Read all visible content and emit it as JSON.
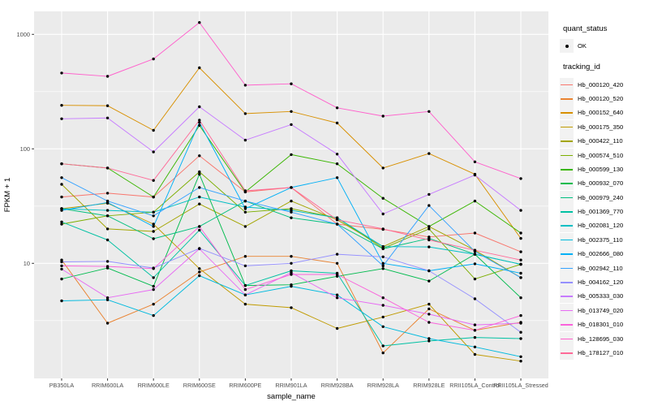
{
  "figure": {
    "background": "#FFFFFF",
    "panel_bg": "#EBEBEB",
    "grid_color": "#FFFFFF",
    "axis_text_color": "#4D4D4D",
    "title_color": "#000000",
    "point_color": "#000000",
    "legend_key_bg": "#F2F2F2"
  },
  "legend": {
    "quant_title": "quant_status",
    "quant_items": [
      {
        "label": "OK",
        "symbol": "point"
      }
    ],
    "tracking_title": "tracking_id"
  },
  "chart_data": {
    "type": "line",
    "title": "",
    "xlabel": "sample_name",
    "ylabel": "FPKM + 1",
    "yscale": "log10",
    "ylim": [
      1,
      1585
    ],
    "y_ticks": [
      10,
      100,
      1000
    ],
    "y_minor_ticks": [
      3.162,
      31.62,
      316.2
    ],
    "grid": true,
    "legend_position": "right",
    "point_marker": "black dot on every value",
    "categories": [
      "PB350LA",
      "RRIM600LA",
      "RRIM600LE",
      "RRIM600SE",
      "RRIM600PE",
      "RRIM901LA",
      "RRIM928BA",
      "RRIM928LA",
      "RRIM928LE",
      "RRII105LA_Control",
      "RRII105LA_Stressed"
    ],
    "series": [
      {
        "name": "Hb_000120_420",
        "color": "#F8766D",
        "values": [
          38,
          41,
          38,
          87,
          42,
          46,
          22,
          19.8,
          17,
          18.4,
          12.6
        ]
      },
      {
        "name": "Hb_000120_520",
        "color": "#EA8331",
        "values": [
          10.7,
          3.0,
          4.4,
          8.4,
          11.5,
          11.5,
          10.0,
          1.65,
          4.0,
          2.6,
          3.05
        ]
      },
      {
        "name": "Hb_000152_640",
        "color": "#D89000",
        "values": [
          240,
          238,
          145,
          510,
          203,
          212,
          168,
          68,
          91,
          60,
          16.5
        ]
      },
      {
        "name": "Hb_000175_350",
        "color": "#C09B00",
        "values": [
          30,
          33.5,
          22,
          9.0,
          4.4,
          4.1,
          2.7,
          3.4,
          4.4,
          1.6,
          1.4
        ]
      },
      {
        "name": "Hb_000422_110",
        "color": "#A3A500",
        "values": [
          49,
          20,
          19,
          33,
          21,
          35,
          24,
          14,
          21,
          13,
          7.5
        ]
      },
      {
        "name": "Hb_000574_510",
        "color": "#7CAE00",
        "values": [
          22,
          26,
          28,
          63,
          28,
          30,
          25,
          13.5,
          20,
          7.3,
          9.8
        ]
      },
      {
        "name": "Hb_000599_130",
        "color": "#39B600",
        "values": [
          74,
          68,
          38,
          160,
          42,
          89,
          74,
          37,
          21,
          35,
          18.4
        ]
      },
      {
        "name": "Hb_000932_070",
        "color": "#00BB4E",
        "values": [
          7.3,
          9.1,
          6.3,
          60,
          6.4,
          6.5,
          7.7,
          9.0,
          7.0,
          12,
          5.0
        ]
      },
      {
        "name": "Hb_000979_240",
        "color": "#00BF7D",
        "values": [
          30,
          26,
          16.4,
          21,
          35,
          25,
          22,
          13.4,
          16.5,
          12,
          9.8
        ]
      },
      {
        "name": "Hb_001369_770",
        "color": "#00C1A3",
        "values": [
          23,
          16,
          7.5,
          19.5,
          6.4,
          8.6,
          8.2,
          1.9,
          2.1,
          2.25,
          2.2
        ]
      },
      {
        "name": "Hb_002081_120",
        "color": "#00BFC4",
        "values": [
          30,
          29,
          28,
          38,
          31,
          29,
          25,
          14,
          13.9,
          12,
          9.8
        ]
      },
      {
        "name": "Hb_002375_110",
        "color": "#00BADE",
        "values": [
          4.7,
          4.8,
          3.5,
          7.8,
          5.3,
          6.3,
          5.3,
          2.8,
          2.2,
          1.86,
          1.53
        ]
      },
      {
        "name": "Hb_002666_080",
        "color": "#00B0F6",
        "values": [
          29,
          34,
          21,
          170,
          30,
          46,
          56,
          10,
          8.6,
          9.9,
          8.2
        ]
      },
      {
        "name": "Hb_002942_110",
        "color": "#35A2FF",
        "values": [
          56,
          35,
          26,
          46,
          35,
          28,
          22,
          9.5,
          32,
          12.7,
          7.5
        ]
      },
      {
        "name": "Hb_004162_120",
        "color": "#9590FF",
        "values": [
          10.3,
          10.4,
          9.1,
          13.5,
          9.5,
          10,
          12,
          11.4,
          8.6,
          4.9,
          2.5
        ]
      },
      {
        "name": "Hb_005333_030",
        "color": "#C77CFF",
        "values": [
          183,
          186,
          94,
          233,
          119,
          163,
          90,
          27,
          40,
          59,
          29
        ]
      },
      {
        "name": "Hb_013749_020",
        "color": "#E76BF3",
        "values": [
          8.9,
          5.0,
          5.9,
          13.4,
          5.3,
          8.3,
          5.0,
          4.3,
          3.6,
          2.9,
          3.0
        ]
      },
      {
        "name": "Hb_018301_010",
        "color": "#FA62DB",
        "values": [
          9.5,
          9.4,
          9.0,
          21,
          5.9,
          8.0,
          8.0,
          5.0,
          3.05,
          2.6,
          3.5
        ]
      },
      {
        "name": "Hb_128695_030",
        "color": "#FF61CC",
        "values": [
          460,
          430,
          610,
          1270,
          360,
          370,
          228,
          193,
          212,
          77,
          55
        ]
      },
      {
        "name": "Hb_178127_010",
        "color": "#FF6A98",
        "values": [
          74,
          68,
          53,
          178,
          43,
          46,
          24,
          20,
          16,
          13,
          10.7
        ]
      }
    ]
  }
}
